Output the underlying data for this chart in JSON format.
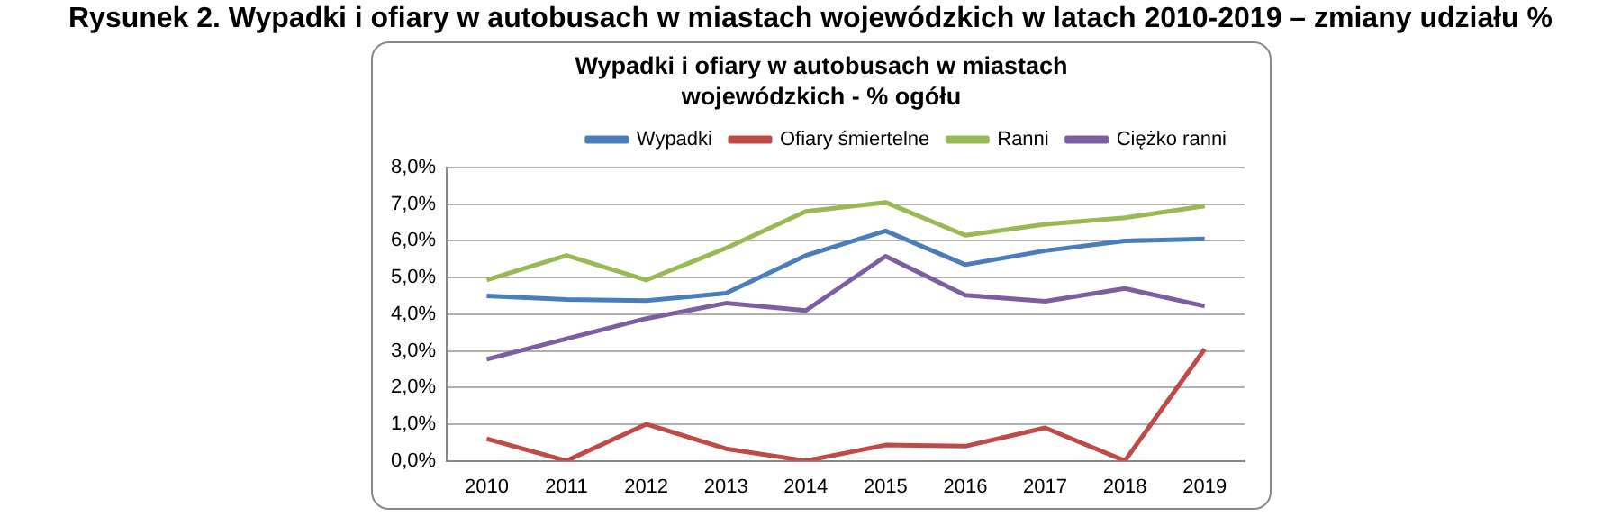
{
  "chart_data": {
    "type": "line",
    "title": "Rysunek 2. Wypadki i ofiary w autobusach w miastach wojewódzkich w latach 2010-2019 – zmiany udziału %",
    "subtitle": "Wypadki i ofiary w autobusach w miastach wojewódzkich - % ogółu",
    "categories": [
      "2010",
      "2011",
      "2012",
      "2013",
      "2014",
      "2015",
      "2016",
      "2017",
      "2018",
      "2019"
    ],
    "series": [
      {
        "name": "Wypadki",
        "color": "#4a7ebb",
        "values": [
          4.5,
          4.4,
          4.37,
          4.57,
          5.6,
          6.27,
          5.35,
          5.73,
          6.0,
          6.05
        ]
      },
      {
        "name": "Ofiary śmiertelne",
        "color": "#be4b48",
        "values": [
          0.6,
          0,
          1.0,
          0.33,
          0,
          0.43,
          0.4,
          0.9,
          0,
          3.05
        ]
      },
      {
        "name": "Ranni",
        "color": "#98b954",
        "values": [
          4.93,
          5.6,
          4.93,
          5.8,
          6.8,
          7.05,
          6.15,
          6.45,
          6.63,
          6.95
        ]
      },
      {
        "name": "Ciężko ranni",
        "color": "#7d5fa0",
        "values": [
          2.77,
          3.33,
          3.88,
          4.3,
          4.1,
          5.58,
          4.52,
          4.35,
          4.7,
          4.22
        ]
      }
    ],
    "ylim": [
      0,
      8
    ],
    "yticks": [
      {
        "value": 0,
        "label": "0,0%"
      },
      {
        "value": 1,
        "label": "1,0%"
      },
      {
        "value": 2,
        "label": "2,0%"
      },
      {
        "value": 3,
        "label": "3,0%"
      },
      {
        "value": 4,
        "label": "4,0%"
      },
      {
        "value": 5,
        "label": "5,0%"
      },
      {
        "value": 6,
        "label": "6,0%"
      },
      {
        "value": 7,
        "label": "7,0%"
      },
      {
        "value": 8,
        "label": "8,0%"
      }
    ],
    "grid": "y",
    "legend": "top right",
    "marker": "none",
    "line_style": "solid"
  }
}
